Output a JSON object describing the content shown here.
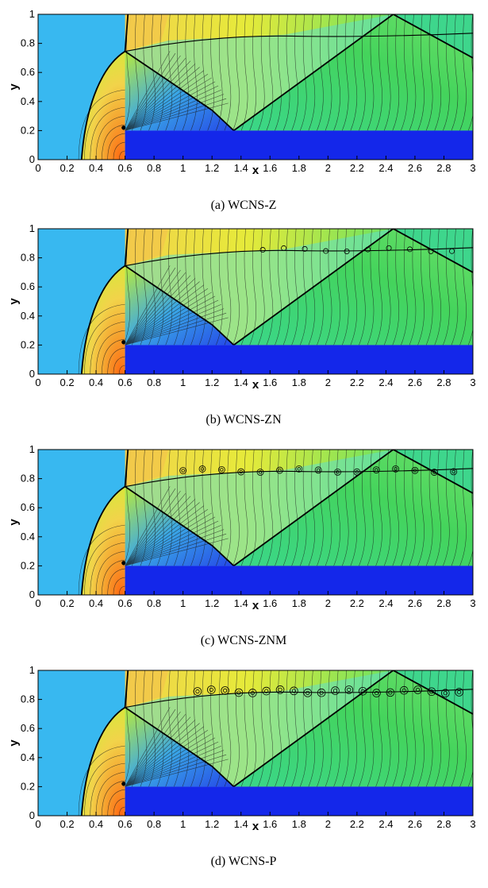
{
  "colors": {
    "upstream": "#38b8f0",
    "step": "#1427ea",
    "shock": "#000000",
    "contour_line": "#1a1a1a"
  },
  "chart_data": [
    {
      "type": "contour",
      "caption": "(a) WCNS-Z",
      "xlabel": "x",
      "ylabel": "y",
      "xlim": [
        0,
        3
      ],
      "ylim": [
        0,
        1
      ],
      "x_ticks": [
        "0",
        "0.2",
        "0.4",
        "0.6",
        "0.8",
        "1",
        "1.2",
        "1.4",
        "1.6",
        "1.8",
        "2",
        "2.2",
        "2.4",
        "2.6",
        "2.8",
        "3"
      ],
      "y_ticks": [
        "0",
        "0.2",
        "0.4",
        "0.6",
        "0.8",
        "1"
      ],
      "step": {
        "x_start": 0.6,
        "height": 0.2
      },
      "vortex_strength": 0
    },
    {
      "type": "contour",
      "caption": "(b) WCNS-ZN",
      "xlabel": "x",
      "ylabel": "y",
      "xlim": [
        0,
        3
      ],
      "ylim": [
        0,
        1
      ],
      "x_ticks": [
        "0",
        "0.2",
        "0.4",
        "0.6",
        "0.8",
        "1",
        "1.2",
        "1.4",
        "1.6",
        "1.8",
        "2",
        "2.2",
        "2.4",
        "2.6",
        "2.8",
        "3"
      ],
      "y_ticks": [
        "0",
        "0.2",
        "0.4",
        "0.6",
        "0.8",
        "1"
      ],
      "step": {
        "x_start": 0.6,
        "height": 0.2
      },
      "vortex_strength": 1
    },
    {
      "type": "contour",
      "caption": "(c) WCNS-ZNM",
      "xlabel": "x",
      "ylabel": "y",
      "xlim": [
        0,
        3
      ],
      "ylim": [
        0,
        1
      ],
      "x_ticks": [
        "0",
        "0.2",
        "0.4",
        "0.6",
        "0.8",
        "1",
        "1.2",
        "1.4",
        "1.6",
        "1.8",
        "2",
        "2.2",
        "2.4",
        "2.6",
        "2.8",
        "3"
      ],
      "y_ticks": [
        "0",
        "0.2",
        "0.4",
        "0.6",
        "0.8",
        "1"
      ],
      "step": {
        "x_start": 0.6,
        "height": 0.2
      },
      "vortex_strength": 2
    },
    {
      "type": "contour",
      "caption": "(d) WCNS-P",
      "xlabel": "x",
      "ylabel": "y",
      "xlim": [
        0,
        3
      ],
      "ylim": [
        0,
        1
      ],
      "x_ticks": [
        "0",
        "0.2",
        "0.4",
        "0.6",
        "0.8",
        "1",
        "1.2",
        "1.4",
        "1.6",
        "1.8",
        "2",
        "2.2",
        "2.4",
        "2.6",
        "2.8",
        "3"
      ],
      "y_ticks": [
        "0",
        "0.2",
        "0.4",
        "0.6",
        "0.8",
        "1"
      ],
      "step": {
        "x_start": 0.6,
        "height": 0.2
      },
      "vortex_strength": 3
    }
  ]
}
